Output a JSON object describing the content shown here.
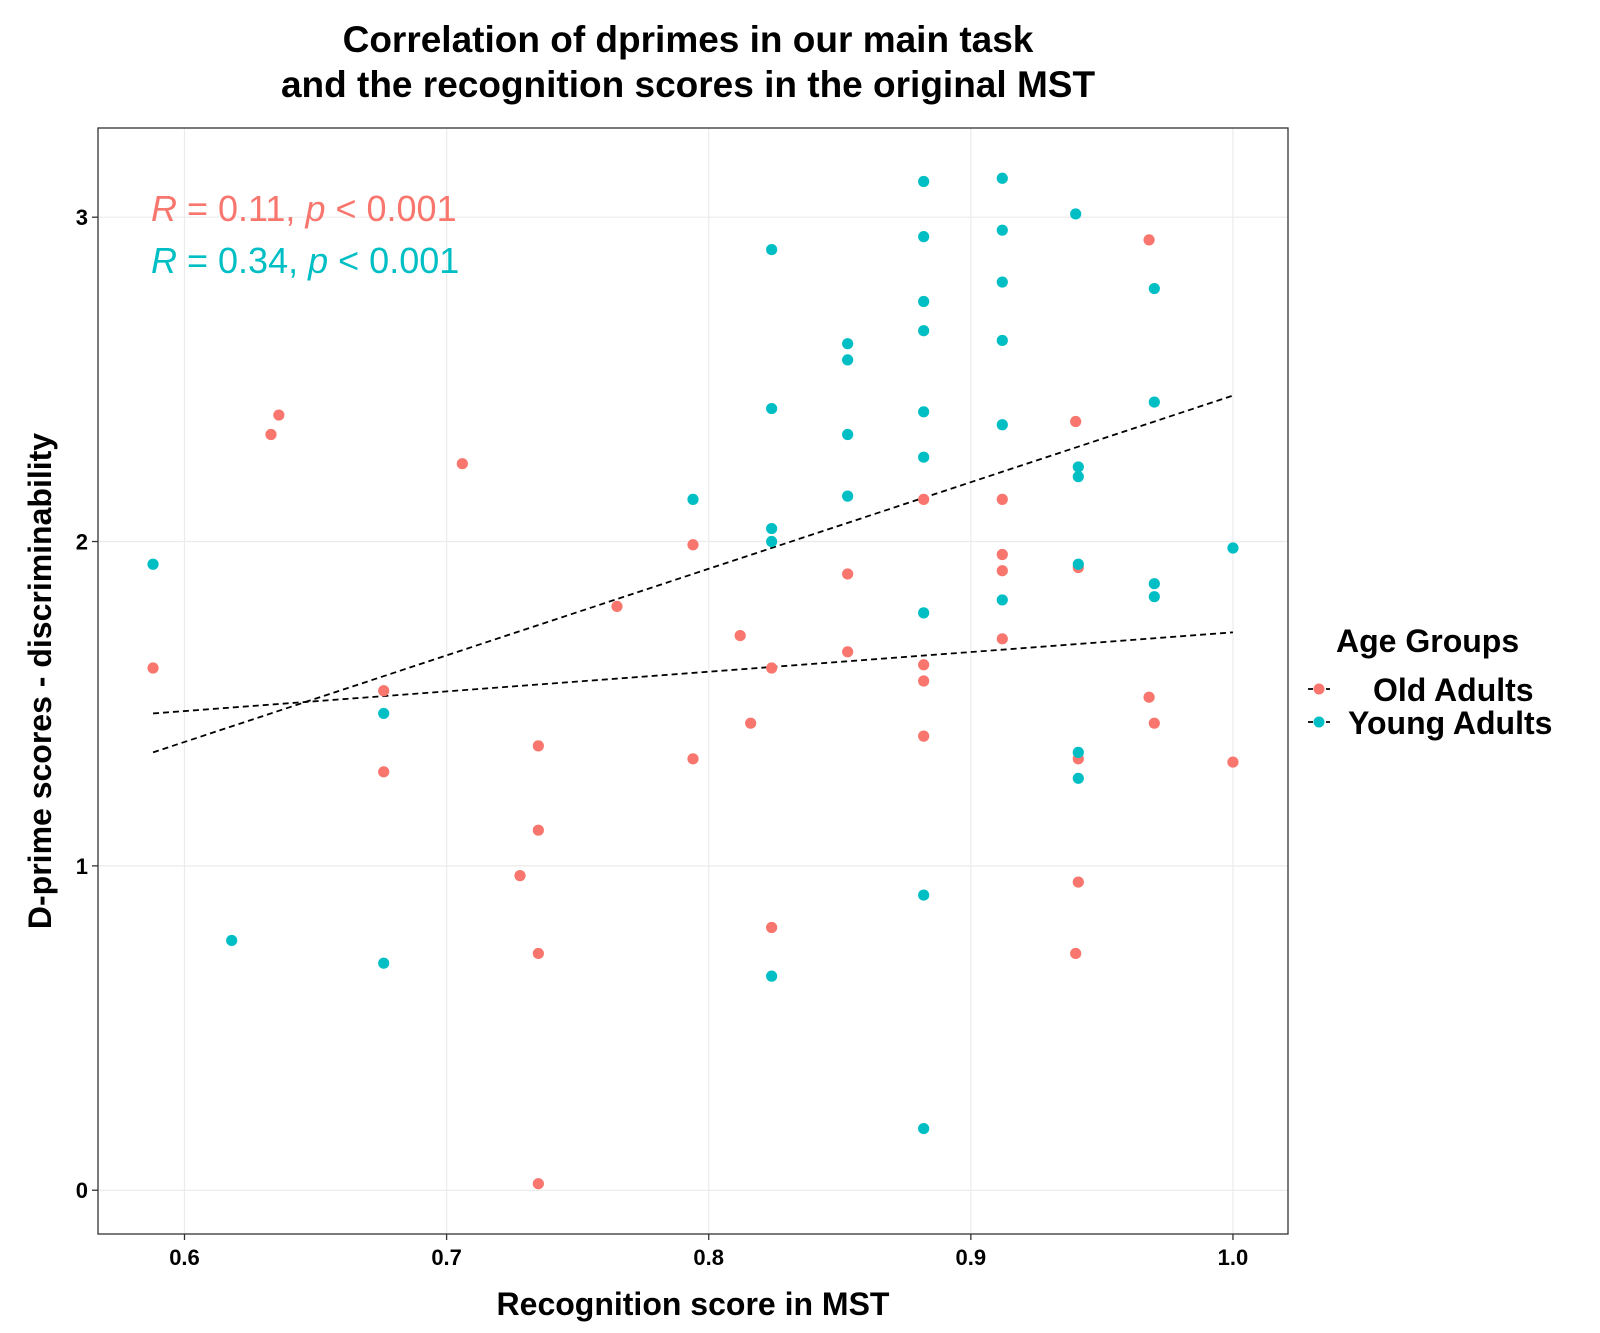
{
  "chart_data": {
    "type": "scatter",
    "title_lines": [
      "Correlation of dprimes in our main task",
      "and the recognition scores in the original MST"
    ],
    "xlabel": "Recognition score in MST",
    "ylabel": "D-prime scores - discriminability",
    "xlim": [
      0.567,
      1.021
    ],
    "ylim": [
      -0.135,
      3.275
    ],
    "x_ticks": [
      0.6,
      0.7,
      0.8,
      0.9,
      1.0
    ],
    "x_tick_labels": [
      "0.6",
      "0.7",
      "0.8",
      "0.9",
      "1.0"
    ],
    "y_ticks": [
      0,
      1,
      2,
      3
    ],
    "y_tick_labels": [
      "0",
      "1",
      "2",
      "3"
    ],
    "grid": true,
    "legend": {
      "title": "Age Groups",
      "placement": "right"
    },
    "annotations": [
      {
        "series": "Old Adults",
        "r_label": "R",
        "r_value": " = 0.11, ",
        "p_label": "p",
        "p_value": " < 0.001"
      },
      {
        "series": "Young Adults",
        "r_label": "R",
        "r_value": " = 0.34, ",
        "p_label": "p",
        "p_value": " < 0.001"
      }
    ],
    "series": [
      {
        "name": "Old Adults",
        "color": "#F8766D",
        "trend": {
          "x": [
            0.588,
            1.0
          ],
          "y": [
            1.47,
            1.72
          ]
        },
        "points": [
          [
            0.588,
            1.61
          ],
          [
            0.633,
            2.33
          ],
          [
            0.636,
            2.39
          ],
          [
            0.676,
            1.54
          ],
          [
            0.676,
            1.29
          ],
          [
            0.706,
            2.24
          ],
          [
            0.728,
            0.97
          ],
          [
            0.735,
            1.37
          ],
          [
            0.735,
            1.11
          ],
          [
            0.735,
            0.73
          ],
          [
            0.735,
            0.02
          ],
          [
            0.765,
            1.8
          ],
          [
            0.794,
            1.99
          ],
          [
            0.794,
            1.33
          ],
          [
            0.812,
            1.71
          ],
          [
            0.816,
            1.44
          ],
          [
            0.824,
            1.61
          ],
          [
            0.824,
            0.81
          ],
          [
            0.853,
            1.9
          ],
          [
            0.853,
            1.66
          ],
          [
            0.882,
            2.13
          ],
          [
            0.882,
            1.62
          ],
          [
            0.882,
            1.57
          ],
          [
            0.882,
            1.4
          ],
          [
            0.912,
            2.13
          ],
          [
            0.912,
            1.96
          ],
          [
            0.912,
            1.91
          ],
          [
            0.912,
            1.7
          ],
          [
            0.94,
            2.37
          ],
          [
            0.941,
            1.92
          ],
          [
            0.941,
            1.33
          ],
          [
            0.941,
            0.95
          ],
          [
            0.94,
            0.73
          ],
          [
            0.968,
            2.93
          ],
          [
            0.968,
            1.52
          ],
          [
            0.97,
            1.44
          ],
          [
            1.0,
            1.32
          ]
        ]
      },
      {
        "name": "Young Adults",
        "color": "#00BFC4",
        "trend": {
          "x": [
            0.588,
            1.0
          ],
          "y": [
            1.35,
            2.45
          ]
        },
        "points": [
          [
            0.588,
            1.93
          ],
          [
            0.618,
            0.77
          ],
          [
            0.676,
            1.47
          ],
          [
            0.676,
            0.7
          ],
          [
            0.794,
            2.13
          ],
          [
            0.824,
            2.9
          ],
          [
            0.824,
            2.41
          ],
          [
            0.824,
            2.04
          ],
          [
            0.824,
            2.0
          ],
          [
            0.824,
            0.66
          ],
          [
            0.853,
            2.61
          ],
          [
            0.853,
            2.56
          ],
          [
            0.853,
            2.33
          ],
          [
            0.853,
            2.14
          ],
          [
            0.882,
            3.11
          ],
          [
            0.882,
            2.94
          ],
          [
            0.882,
            2.74
          ],
          [
            0.882,
            2.65
          ],
          [
            0.882,
            2.4
          ],
          [
            0.882,
            2.26
          ],
          [
            0.882,
            1.78
          ],
          [
            0.882,
            0.91
          ],
          [
            0.882,
            0.19
          ],
          [
            0.912,
            3.12
          ],
          [
            0.912,
            2.96
          ],
          [
            0.912,
            2.8
          ],
          [
            0.912,
            2.62
          ],
          [
            0.912,
            2.36
          ],
          [
            0.912,
            1.82
          ],
          [
            0.94,
            3.01
          ],
          [
            0.941,
            2.23
          ],
          [
            0.941,
            2.2
          ],
          [
            0.941,
            1.93
          ],
          [
            0.941,
            1.35
          ],
          [
            0.941,
            1.27
          ],
          [
            0.97,
            2.78
          ],
          [
            0.97,
            2.43
          ],
          [
            0.97,
            1.87
          ],
          [
            0.97,
            1.83
          ],
          [
            1.0,
            1.98
          ]
        ]
      }
    ]
  }
}
